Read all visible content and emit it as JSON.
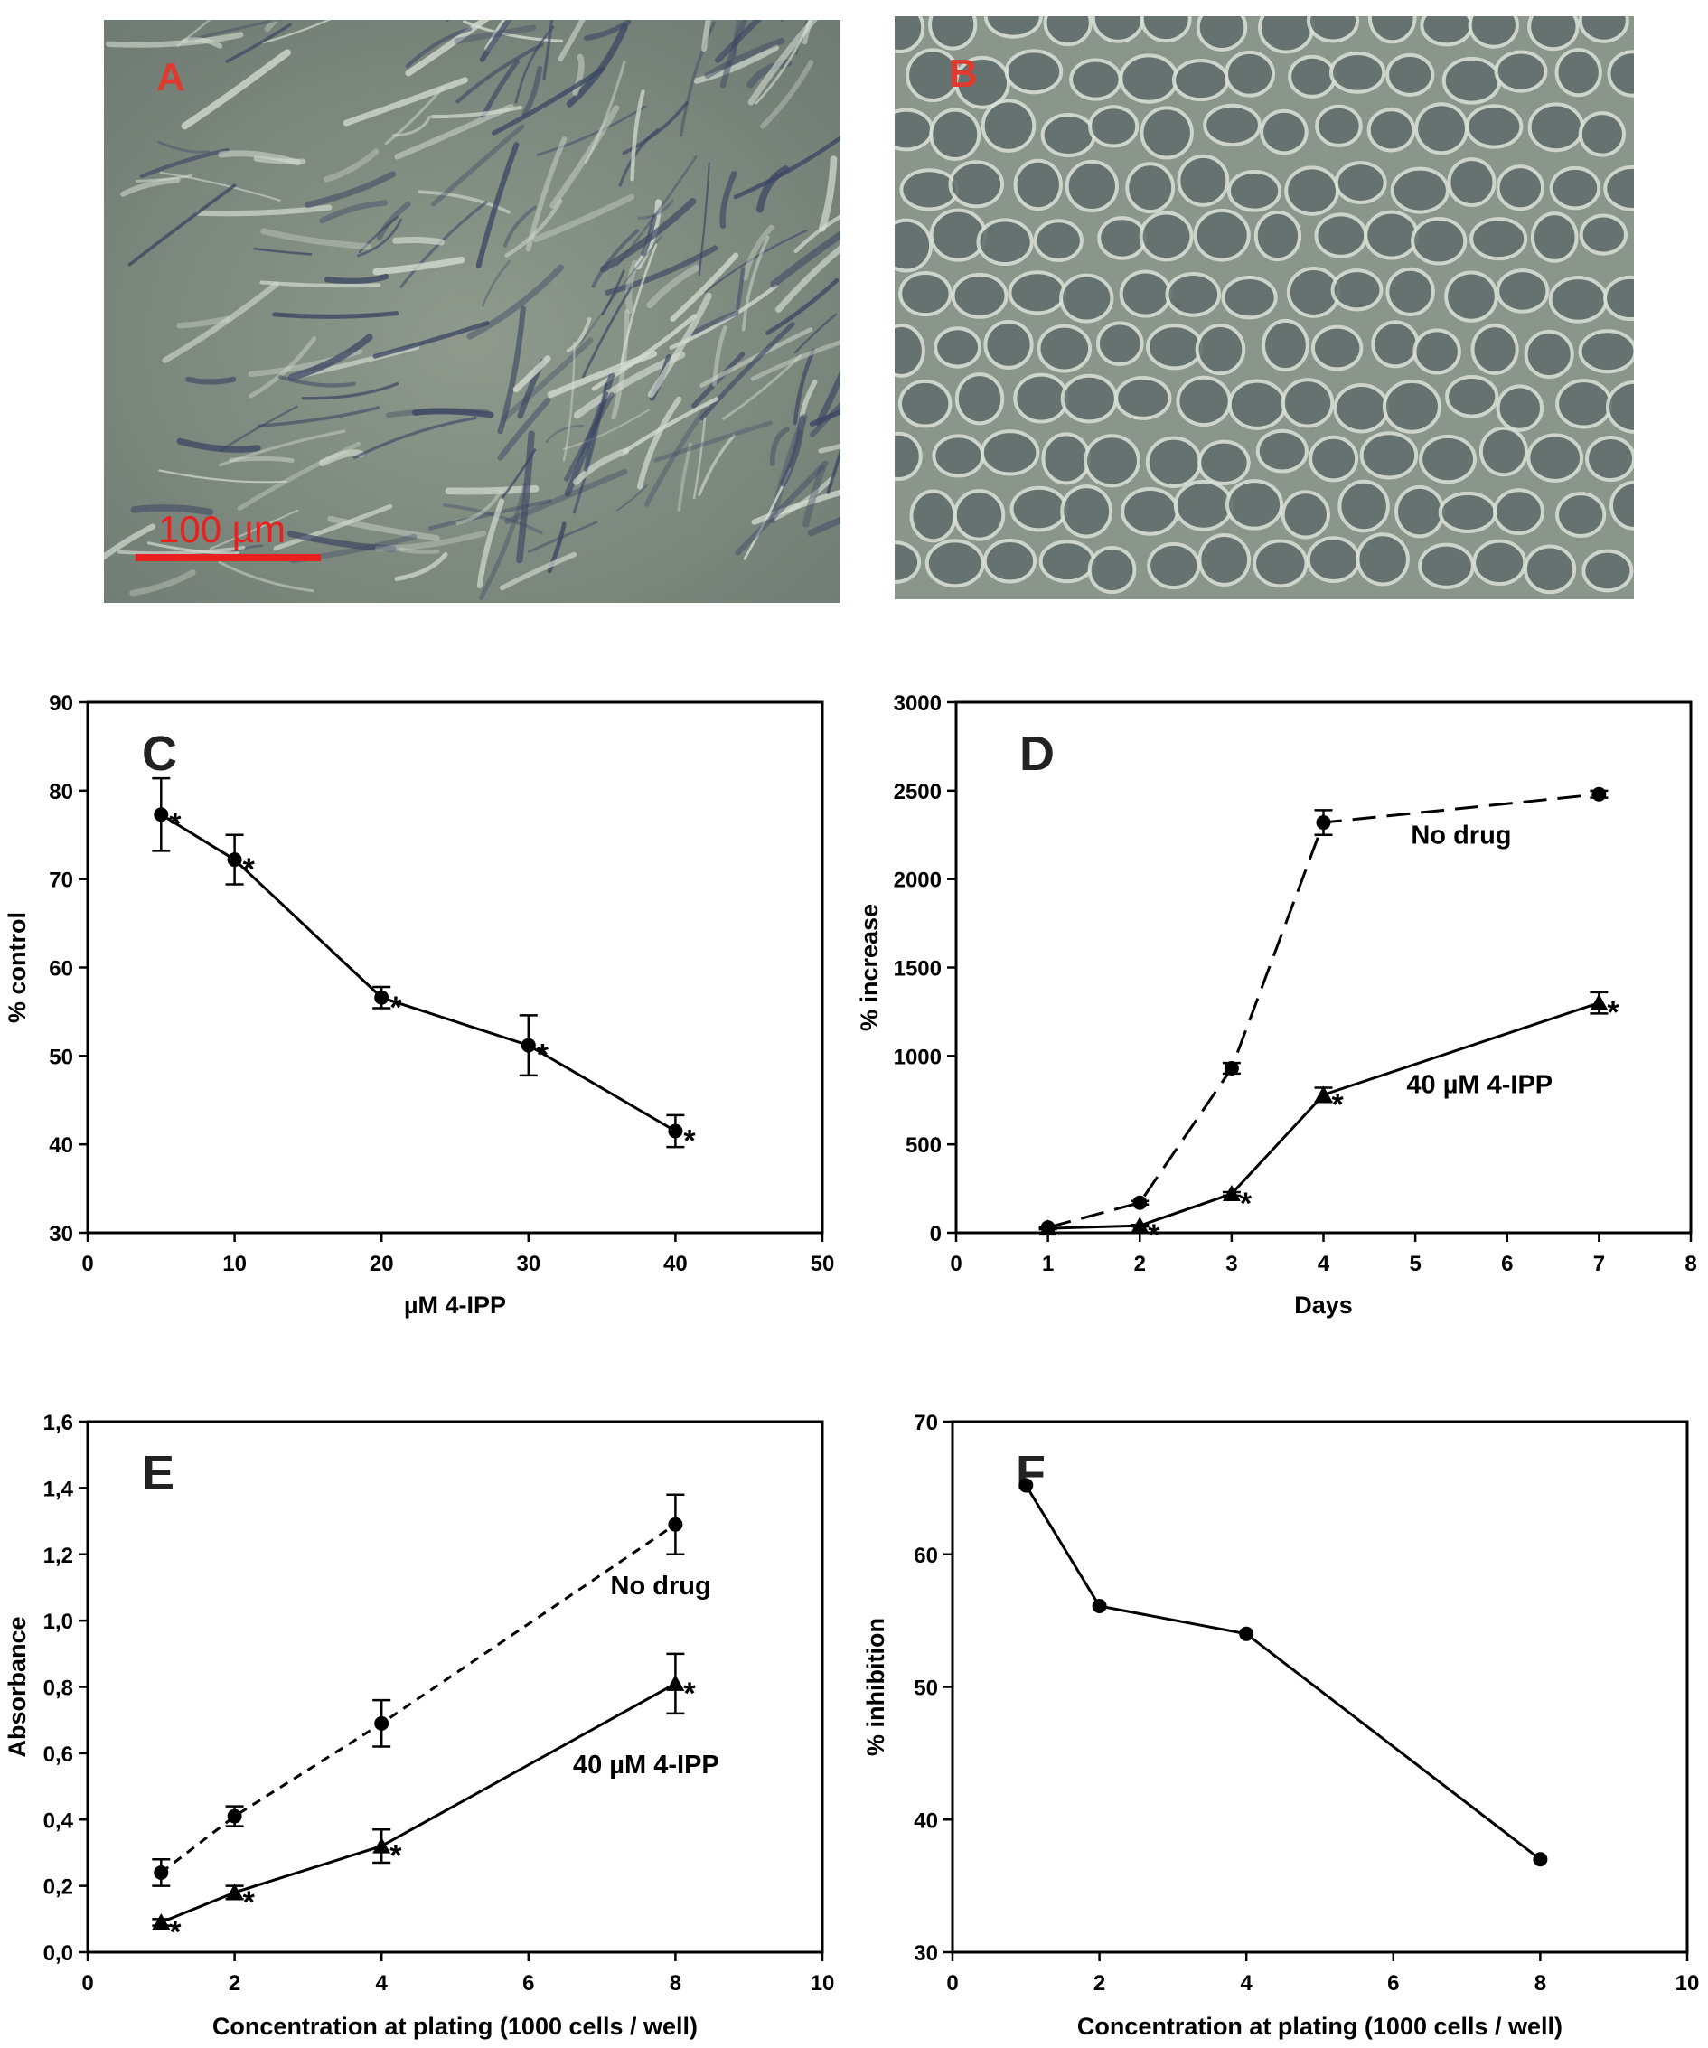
{
  "panels": {
    "A": {
      "letter": "A",
      "scale_bar_label": "100 µm",
      "letter_color": "#e03a2e",
      "scale_bar_color": "#e8201e"
    },
    "B": {
      "letter": "B",
      "letter_color": "#e03a2e"
    }
  },
  "chart_data": [
    {
      "id": "C",
      "letter": "C",
      "type": "scatter",
      "xlabel": "µM 4-IPP",
      "ylabel": "% control",
      "xlim": [
        0,
        50
      ],
      "ylim": [
        30,
        90
      ],
      "xticks": [
        "0",
        "10",
        "20",
        "30",
        "40",
        "50"
      ],
      "yticks": [
        "30",
        "40",
        "50",
        "60",
        "70",
        "80",
        "90"
      ],
      "series": [
        {
          "name": "",
          "marker": "circle",
          "dash": "solid",
          "x": [
            5,
            10,
            20,
            30,
            40
          ],
          "y": [
            77.3,
            72.2,
            56.6,
            51.2,
            41.5
          ],
          "err": [
            4.1,
            2.8,
            1.2,
            3.4,
            1.8
          ],
          "annotations": [
            "*",
            "*",
            "*",
            "*",
            "*"
          ]
        }
      ],
      "labels": []
    },
    {
      "id": "D",
      "letter": "D",
      "type": "line",
      "xlabel": "Days",
      "ylabel": "% increase",
      "xlim": [
        0,
        8
      ],
      "ylim": [
        0,
        3000
      ],
      "xticks": [
        "0",
        "1",
        "2",
        "3",
        "4",
        "5",
        "6",
        "7",
        "8"
      ],
      "yticks": [
        "0",
        "500",
        "1000",
        "1500",
        "2000",
        "2500",
        "3000"
      ],
      "series": [
        {
          "name": "No drug",
          "marker": "circle",
          "dash": "longdash",
          "x": [
            1,
            2,
            3,
            4,
            7
          ],
          "y": [
            30,
            170,
            930,
            2320,
            2480
          ],
          "err": [
            5,
            10,
            30,
            70,
            20
          ],
          "annotations": [
            "",
            "",
            "",
            "",
            ""
          ]
        },
        {
          "name": "40 µM 4-IPP",
          "marker": "triangle",
          "dash": "solid",
          "x": [
            1,
            2,
            3,
            4,
            7
          ],
          "y": [
            25,
            40,
            220,
            780,
            1300
          ],
          "err": [
            5,
            5,
            10,
            40,
            60
          ],
          "annotations": [
            "",
            "*",
            "*",
            "*",
            "*"
          ]
        }
      ],
      "labels": [
        {
          "text": "No drug",
          "x": 5.5,
          "y": 2200
        },
        {
          "text": "40 µM 4-IPP",
          "x": 5.7,
          "y": 790
        }
      ]
    },
    {
      "id": "E",
      "letter": "E",
      "type": "line",
      "xlabel": "Concentration at plating (1000 cells / well)",
      "ylabel": "Absorbance",
      "xlim": [
        0,
        10
      ],
      "ylim": [
        0,
        1.6
      ],
      "xticks": [
        "0",
        "2",
        "4",
        "6",
        "8",
        "10"
      ],
      "yticks": [
        "0,0",
        "0,2",
        "0,4",
        "0,6",
        "0,8",
        "1,0",
        "1,2",
        "1,4",
        "1,6"
      ],
      "series": [
        {
          "name": "No drug",
          "marker": "circle",
          "dash": "shortdash",
          "x": [
            1,
            2,
            4,
            8
          ],
          "y": [
            0.24,
            0.41,
            0.69,
            1.29
          ],
          "err": [
            0.04,
            0.03,
            0.07,
            0.09
          ],
          "annotations": [
            "",
            "",
            "",
            ""
          ]
        },
        {
          "name": "40 µM 4-IPP",
          "marker": "triangle",
          "dash": "solid",
          "x": [
            1,
            2,
            4,
            8
          ],
          "y": [
            0.09,
            0.18,
            0.32,
            0.81
          ],
          "err": [
            0.01,
            0.02,
            0.05,
            0.09
          ],
          "annotations": [
            "*",
            "*",
            "*",
            "*"
          ]
        }
      ],
      "labels": [
        {
          "text": "No drug",
          "x": 7.8,
          "y": 1.08
        },
        {
          "text": "40 µM 4-IPP",
          "x": 7.6,
          "y": 0.54
        }
      ]
    },
    {
      "id": "F",
      "letter": "F",
      "type": "line",
      "xlabel": "Concentration at plating (1000 cells / well)",
      "ylabel": "% inhibition",
      "xlim": [
        0,
        10
      ],
      "ylim": [
        30,
        70
      ],
      "xticks": [
        "0",
        "2",
        "4",
        "6",
        "8",
        "10"
      ],
      "yticks": [
        "30",
        "40",
        "50",
        "60",
        "70"
      ],
      "series": [
        {
          "name": "",
          "marker": "circle",
          "dash": "solid",
          "x": [
            1,
            2,
            4,
            8
          ],
          "y": [
            65.2,
            56.1,
            54.0,
            37.0
          ],
          "err": [
            0,
            0,
            0,
            0
          ],
          "annotations": [
            "",
            "",
            "",
            ""
          ]
        }
      ],
      "labels": []
    }
  ]
}
